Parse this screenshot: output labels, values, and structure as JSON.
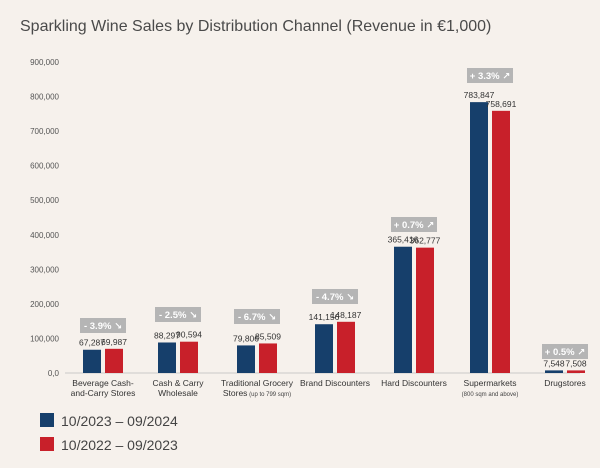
{
  "chart_data": {
    "type": "bar",
    "title": "Sparkling Wine Sales by Distribution Channel (Revenue in €1,000)",
    "ylim": [
      0,
      900000
    ],
    "yticks": [
      "0,0",
      "100,000",
      "200,000",
      "300,000",
      "400,000",
      "500,000",
      "600,000",
      "700,000",
      "800,000",
      "900,000"
    ],
    "categories": [
      {
        "label": [
          "Beverage Cash-",
          "and-Carry Stores"
        ],
        "sub": ""
      },
      {
        "label": [
          "Cash & Carry",
          "Wholesale"
        ],
        "sub": ""
      },
      {
        "label": [
          "Traditional Grocery",
          "Stores"
        ],
        "sub": "(up to 799 sqm)"
      },
      {
        "label": [
          "Brand Discounters"
        ],
        "sub": ""
      },
      {
        "label": [
          "Hard Discounters"
        ],
        "sub": ""
      },
      {
        "label": [
          "Supermarkets"
        ],
        "sub": "(800 sqm and above)"
      },
      {
        "label": [
          "Drugstores"
        ],
        "sub": ""
      }
    ],
    "series": [
      {
        "name": "10/2023 – 09/2024",
        "color": "#163f6b",
        "values": [
          67287,
          88297,
          79806,
          141156,
          365416,
          783847,
          7548
        ],
        "labels": [
          "67,287",
          "88,297",
          "79,806",
          "141,156",
          "365,416",
          "783,847",
          "7,548"
        ]
      },
      {
        "name": "10/2022 – 09/2023",
        "color": "#c8202a",
        "values": [
          69987,
          90594,
          85509,
          148187,
          362777,
          758691,
          7508
        ],
        "labels": [
          "69,987",
          "90,594",
          "85,509",
          "148,187",
          "362,777",
          "758,691",
          "7,508"
        ]
      }
    ],
    "changes": [
      "- 3.9% ↘",
      "- 2.5% ↘",
      "- 6.7% ↘",
      "- 4.7% ↘",
      "+ 0.7% ↗",
      "+ 3.3% ↗",
      "+ 0.5% ↗"
    ],
    "badge_color": "#b5b5b5"
  }
}
